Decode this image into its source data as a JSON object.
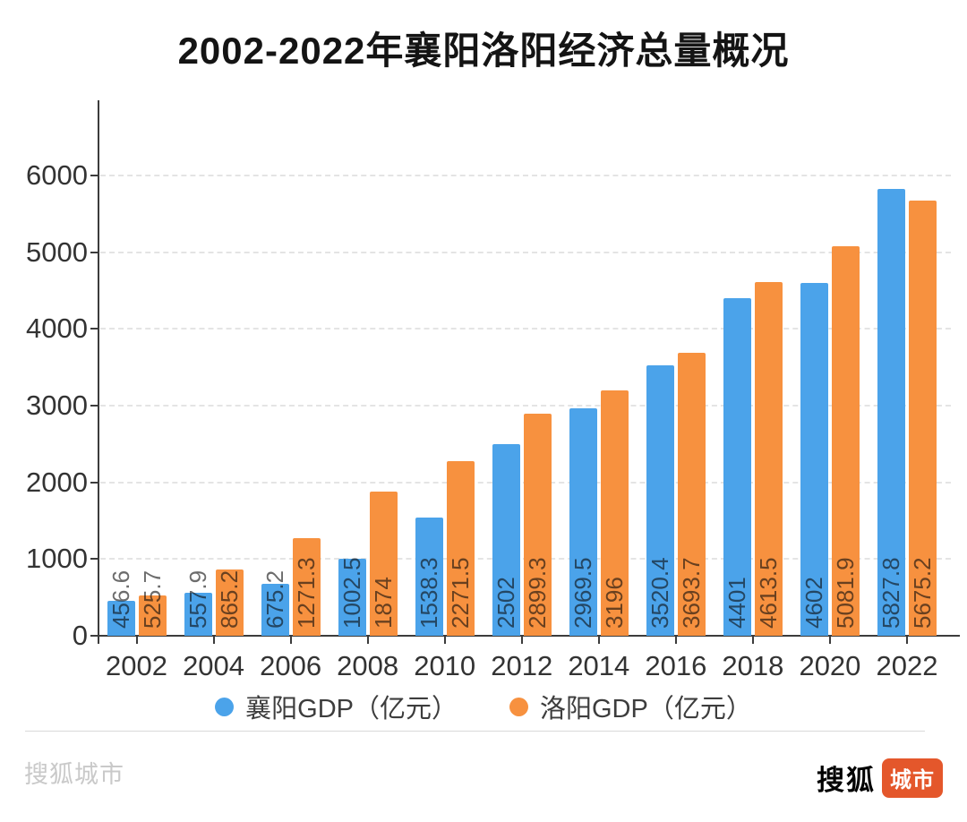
{
  "title": "2002-2022年襄阳洛阳经济总量概况",
  "watermark": "搜狐城市",
  "logo": {
    "text": "搜狐",
    "badge": "城市"
  },
  "colors": {
    "xiangyang_bar": "#4BA3EA",
    "luoyang_bar": "#F7913F",
    "axis": "#3C3C3C",
    "gridline": "#E4E4E4",
    "logo_badge": "#E4572B"
  },
  "chart_data": {
    "type": "bar",
    "title": "2002-2022年襄阳洛阳经济总量概况",
    "categories": [
      "2002",
      "2004",
      "2006",
      "2008",
      "2010",
      "2012",
      "2014",
      "2016",
      "2018",
      "2020",
      "2022"
    ],
    "series": [
      {
        "id": "xiangyang",
        "name": "襄阳GDP（亿元）",
        "color": "#4BA3EA",
        "values": [
          456.6,
          557.9,
          675.2,
          1002.5,
          1538.3,
          2502,
          2969.5,
          3520.4,
          4401,
          4602,
          5827.8
        ]
      },
      {
        "id": "luoyang",
        "name": "洛阳GDP（亿元）",
        "color": "#F7913F",
        "values": [
          525.7,
          865.2,
          1271.3,
          1874,
          2271.5,
          2899.3,
          3196,
          3693.7,
          4613.5,
          5081.9,
          5675.2
        ]
      }
    ],
    "xlabel": "",
    "ylabel": "",
    "ylim": [
      0,
      6000
    ],
    "yticks": [
      0,
      1000,
      2000,
      3000,
      4000,
      5000,
      6000
    ],
    "grid": "horizontal-dashed",
    "legend_position": "bottom",
    "value_labels": "rotated-90-at-bar-base"
  }
}
